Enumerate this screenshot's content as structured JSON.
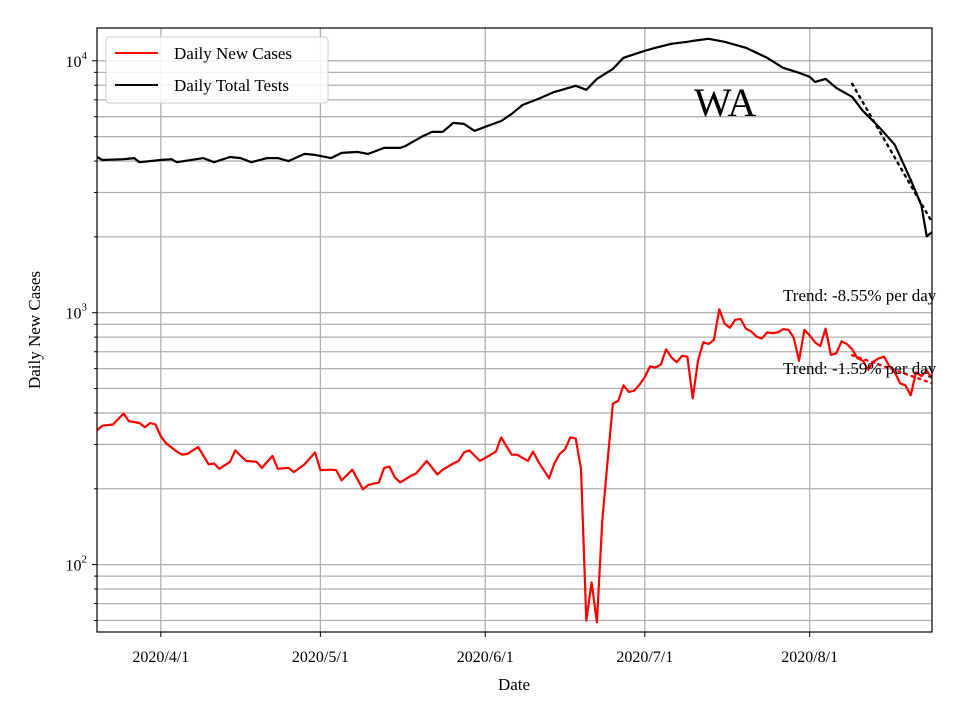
{
  "chart_data": {
    "type": "line",
    "title": "",
    "xlabel": "Date",
    "ylabel": "Daily New Cases",
    "yscale": "log",
    "xlim": [
      "2020-03-20",
      "2020-08-24"
    ],
    "ylim": [
      54,
      13500
    ],
    "grid": true,
    "legend_placement": "top-left",
    "x_ticks": [
      {
        "date": "2020-04-01",
        "label": "2020/4/1"
      },
      {
        "date": "2020-05-01",
        "label": "2020/5/1"
      },
      {
        "date": "2020-06-01",
        "label": "2020/6/1"
      },
      {
        "date": "2020-07-01",
        "label": "2020/7/1"
      },
      {
        "date": "2020-08-01",
        "label": "2020/8/1"
      }
    ],
    "y_ticks": [
      {
        "value": 100,
        "base": "10",
        "exp": "2"
      },
      {
        "value": 1000,
        "base": "10",
        "exp": "3"
      },
      {
        "value": 10000,
        "base": "10",
        "exp": "4"
      }
    ],
    "annotations": {
      "state": "WA",
      "trend_tests": "Trend: -8.55% per day",
      "trend_cases": "Trend: -1.59% per day"
    },
    "series": [
      {
        "name": "Daily New Cases",
        "color": "#ff0000",
        "points": [
          [
            "2020-03-20",
            341
          ],
          [
            "2020-03-21",
            356
          ],
          [
            "2020-03-23",
            360
          ],
          [
            "2020-03-25",
            398
          ],
          [
            "2020-03-26",
            371
          ],
          [
            "2020-03-28",
            365
          ],
          [
            "2020-03-29",
            351
          ],
          [
            "2020-03-30",
            365
          ],
          [
            "2020-03-31",
            360
          ],
          [
            "2020-04-01",
            323
          ],
          [
            "2020-04-02",
            303
          ],
          [
            "2020-04-04",
            281
          ],
          [
            "2020-04-05",
            273
          ],
          [
            "2020-04-06",
            275
          ],
          [
            "2020-04-08",
            293
          ],
          [
            "2020-04-10",
            250
          ],
          [
            "2020-04-11",
            252
          ],
          [
            "2020-04-12",
            240
          ],
          [
            "2020-04-14",
            256
          ],
          [
            "2020-04-15",
            284
          ],
          [
            "2020-04-17",
            258
          ],
          [
            "2020-04-19",
            256
          ],
          [
            "2020-04-20",
            242
          ],
          [
            "2020-04-22",
            270
          ],
          [
            "2020-04-23",
            240
          ],
          [
            "2020-04-25",
            242
          ],
          [
            "2020-04-26",
            233
          ],
          [
            "2020-04-28",
            250
          ],
          [
            "2020-04-30",
            279
          ],
          [
            "2020-05-01",
            237
          ],
          [
            "2020-05-03",
            238
          ],
          [
            "2020-05-04",
            237
          ],
          [
            "2020-05-05",
            216
          ],
          [
            "2020-05-07",
            238
          ],
          [
            "2020-05-09",
            199
          ],
          [
            "2020-05-10",
            207
          ],
          [
            "2020-05-12",
            212
          ],
          [
            "2020-05-13",
            242
          ],
          [
            "2020-05-14",
            245
          ],
          [
            "2020-05-15",
            222
          ],
          [
            "2020-05-16",
            212
          ],
          [
            "2020-05-18",
            225
          ],
          [
            "2020-05-19",
            230
          ],
          [
            "2020-05-21",
            258
          ],
          [
            "2020-05-23",
            228
          ],
          [
            "2020-05-24",
            238
          ],
          [
            "2020-05-26",
            252
          ],
          [
            "2020-05-27",
            258
          ],
          [
            "2020-05-28",
            279
          ],
          [
            "2020-05-29",
            284
          ],
          [
            "2020-05-31",
            258
          ],
          [
            "2020-06-01",
            265
          ],
          [
            "2020-06-02",
            273
          ],
          [
            "2020-06-03",
            281
          ],
          [
            "2020-06-04",
            320
          ],
          [
            "2020-06-05",
            295
          ],
          [
            "2020-06-06",
            273
          ],
          [
            "2020-06-07",
            273
          ],
          [
            "2020-06-09",
            258
          ],
          [
            "2020-06-10",
            281
          ],
          [
            "2020-06-11",
            256
          ],
          [
            "2020-06-13",
            220
          ],
          [
            "2020-06-14",
            252
          ],
          [
            "2020-06-15",
            275
          ],
          [
            "2020-06-16",
            287
          ],
          [
            "2020-06-17",
            320
          ],
          [
            "2020-06-18",
            317
          ],
          [
            "2020-06-19",
            240
          ],
          [
            "2020-06-20",
            60
          ],
          [
            "2020-06-21",
            85
          ],
          [
            "2020-06-22",
            59
          ],
          [
            "2020-06-23",
            150
          ],
          [
            "2020-06-24",
            258
          ],
          [
            "2020-06-25",
            436
          ],
          [
            "2020-06-26",
            446
          ],
          [
            "2020-06-27",
            515
          ],
          [
            "2020-06-28",
            485
          ],
          [
            "2020-06-29",
            490
          ],
          [
            "2020-06-30",
            518
          ],
          [
            "2020-07-01",
            555
          ],
          [
            "2020-07-02",
            612
          ],
          [
            "2020-07-03",
            606
          ],
          [
            "2020-07-04",
            622
          ],
          [
            "2020-07-05",
            716
          ],
          [
            "2020-07-06",
            665
          ],
          [
            "2020-07-07",
            636
          ],
          [
            "2020-07-08",
            674
          ],
          [
            "2020-07-09",
            669
          ],
          [
            "2020-07-10",
            457
          ],
          [
            "2020-07-11",
            645
          ],
          [
            "2020-07-12",
            764
          ],
          [
            "2020-07-13",
            751
          ],
          [
            "2020-07-14",
            780
          ],
          [
            "2020-07-15",
            1032
          ],
          [
            "2020-07-16",
            905
          ],
          [
            "2020-07-17",
            872
          ],
          [
            "2020-07-18",
            937
          ],
          [
            "2020-07-19",
            945
          ],
          [
            "2020-07-20",
            865
          ],
          [
            "2020-07-21",
            842
          ],
          [
            "2020-07-22",
            804
          ],
          [
            "2020-07-23",
            790
          ],
          [
            "2020-07-24",
            835
          ],
          [
            "2020-07-25",
            830
          ],
          [
            "2020-07-26",
            835
          ],
          [
            "2020-07-27",
            860
          ],
          [
            "2020-07-28",
            855
          ],
          [
            "2020-07-29",
            797
          ],
          [
            "2020-07-30",
            645
          ],
          [
            "2020-07-31",
            855
          ],
          [
            "2020-08-01",
            812
          ],
          [
            "2020-08-02",
            764
          ],
          [
            "2020-08-03",
            737
          ],
          [
            "2020-08-04",
            865
          ],
          [
            "2020-08-05",
            680
          ],
          [
            "2020-08-06",
            690
          ],
          [
            "2020-08-07",
            770
          ],
          [
            "2020-08-08",
            751
          ],
          [
            "2020-08-09",
            716
          ],
          [
            "2020-08-10",
            659
          ],
          [
            "2020-08-11",
            645
          ],
          [
            "2020-08-12",
            594
          ],
          [
            "2020-08-13",
            640
          ],
          [
            "2020-08-14",
            659
          ],
          [
            "2020-08-15",
            669
          ],
          [
            "2020-08-16",
            612
          ],
          [
            "2020-08-17",
            580
          ],
          [
            "2020-08-18",
            524
          ],
          [
            "2020-08-19",
            515
          ],
          [
            "2020-08-20",
            470
          ],
          [
            "2020-08-21",
            580
          ],
          [
            "2020-08-22",
            560
          ],
          [
            "2020-08-23",
            590
          ],
          [
            "2020-08-24",
            548
          ]
        ],
        "trend": [
          [
            "2020-08-09",
            678
          ],
          [
            "2020-08-24",
            525
          ]
        ]
      },
      {
        "name": "Daily Total Tests",
        "color": "#000000",
        "points": [
          [
            "2020-03-20",
            4150
          ],
          [
            "2020-03-21",
            4040
          ],
          [
            "2020-03-25",
            4070
          ],
          [
            "2020-03-27",
            4110
          ],
          [
            "2020-03-28",
            3960
          ],
          [
            "2020-04-01",
            4040
          ],
          [
            "2020-04-03",
            4070
          ],
          [
            "2020-04-04",
            3960
          ],
          [
            "2020-04-09",
            4110
          ],
          [
            "2020-04-11",
            3960
          ],
          [
            "2020-04-14",
            4150
          ],
          [
            "2020-04-16",
            4110
          ],
          [
            "2020-04-18",
            3960
          ],
          [
            "2020-04-21",
            4110
          ],
          [
            "2020-04-23",
            4110
          ],
          [
            "2020-04-25",
            4000
          ],
          [
            "2020-04-28",
            4270
          ],
          [
            "2020-04-30",
            4230
          ],
          [
            "2020-05-03",
            4110
          ],
          [
            "2020-05-05",
            4310
          ],
          [
            "2020-05-08",
            4350
          ],
          [
            "2020-05-10",
            4270
          ],
          [
            "2020-05-13",
            4510
          ],
          [
            "2020-05-16",
            4510
          ],
          [
            "2020-05-17",
            4590
          ],
          [
            "2020-05-20",
            4990
          ],
          [
            "2020-05-22",
            5220
          ],
          [
            "2020-05-24",
            5220
          ],
          [
            "2020-05-26",
            5670
          ],
          [
            "2020-05-28",
            5620
          ],
          [
            "2020-05-30",
            5270
          ],
          [
            "2020-06-01",
            5470
          ],
          [
            "2020-06-04",
            5770
          ],
          [
            "2020-06-06",
            6160
          ],
          [
            "2020-06-08",
            6680
          ],
          [
            "2020-06-11",
            7060
          ],
          [
            "2020-06-14",
            7530
          ],
          [
            "2020-06-16",
            7740
          ],
          [
            "2020-06-18",
            7960
          ],
          [
            "2020-06-20",
            7670
          ],
          [
            "2020-06-22",
            8480
          ],
          [
            "2020-06-25",
            9290
          ],
          [
            "2020-06-27",
            10280
          ],
          [
            "2020-07-01",
            10960
          ],
          [
            "2020-07-03",
            11260
          ],
          [
            "2020-07-06",
            11680
          ],
          [
            "2020-07-09",
            11900
          ],
          [
            "2020-07-10",
            12000
          ],
          [
            "2020-07-13",
            12230
          ],
          [
            "2020-07-16",
            11900
          ],
          [
            "2020-07-20",
            11260
          ],
          [
            "2020-07-24",
            10280
          ],
          [
            "2020-07-27",
            9380
          ],
          [
            "2020-07-30",
            8960
          ],
          [
            "2020-08-01",
            8640
          ],
          [
            "2020-08-02",
            8250
          ],
          [
            "2020-08-04",
            8480
          ],
          [
            "2020-08-06",
            7810
          ],
          [
            "2020-08-09",
            7190
          ],
          [
            "2020-08-11",
            6330
          ],
          [
            "2020-08-14",
            5470
          ],
          [
            "2020-08-17",
            4640
          ],
          [
            "2020-08-20",
            3370
          ],
          [
            "2020-08-22",
            2670
          ],
          [
            "2020-08-23",
            2010
          ],
          [
            "2020-08-24",
            2090
          ]
        ],
        "trend": [
          [
            "2020-08-09",
            8100
          ],
          [
            "2020-08-24",
            2290
          ]
        ]
      }
    ]
  }
}
